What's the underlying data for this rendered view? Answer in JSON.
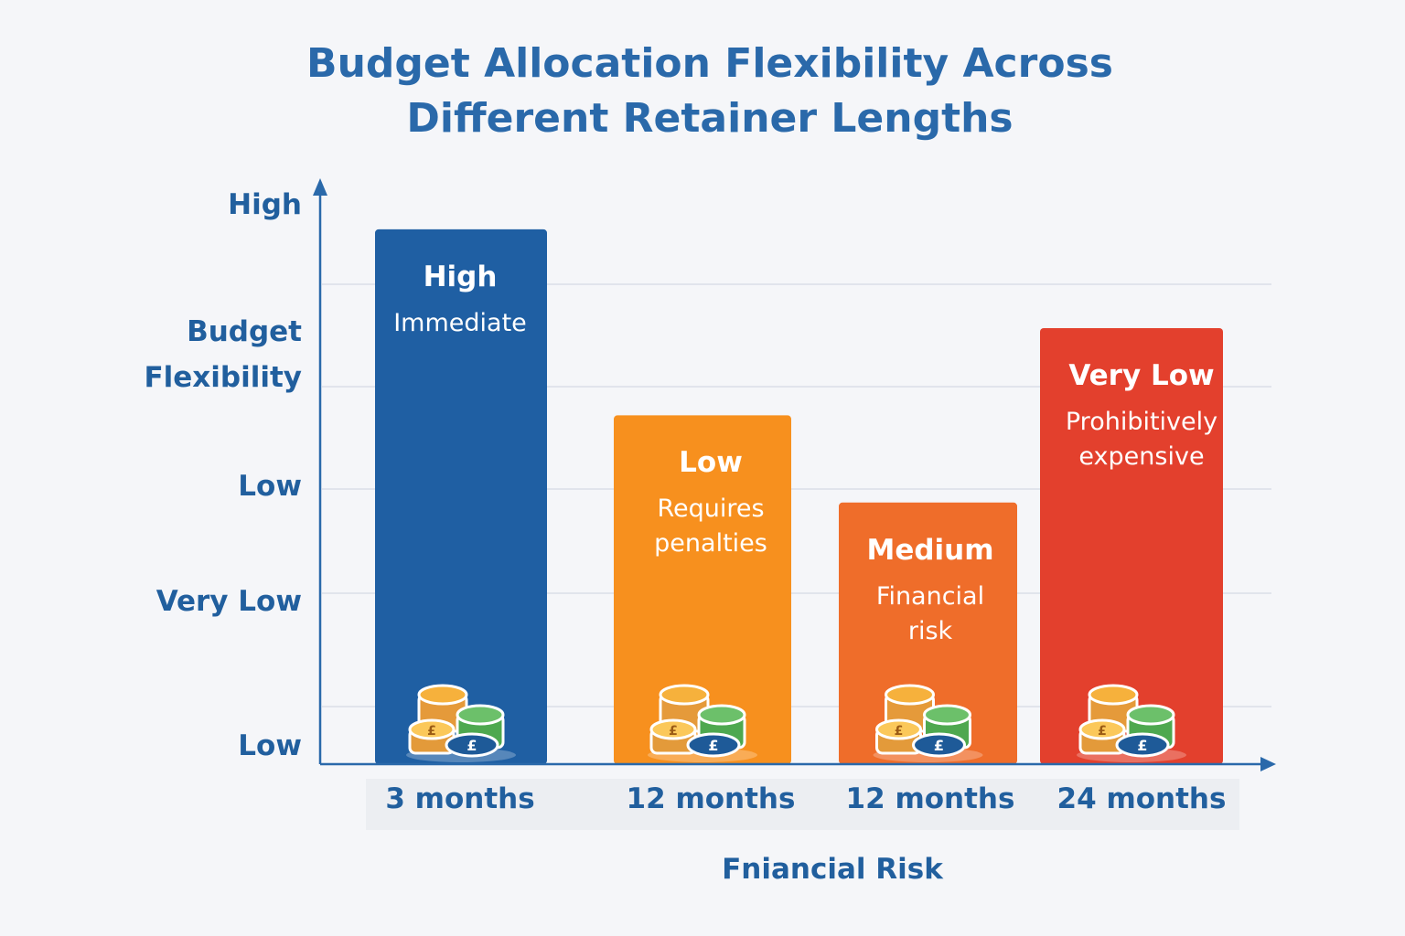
{
  "chart_data": {
    "type": "bar",
    "title": "Budget Allocation Flexibility Across Different Retainer Lengths",
    "title_lines": [
      "Budget Allocation Flexibility Across",
      "Different Retainer Lengths"
    ],
    "ylabel_lines": [
      "Budget",
      "Flexibility"
    ],
    "xlabel": "Fniancial Risk",
    "y_tick_labels": [
      "Low",
      "Very Low",
      "Low",
      "High"
    ],
    "ylim": [
      0,
      100
    ],
    "grid": true,
    "categories": [
      "3 months",
      "12 months",
      "12 months",
      "24 months"
    ],
    "values": [
      92,
      60,
      45,
      75
    ],
    "bar_levels": [
      "High",
      "Low",
      "Medium",
      "Very Low"
    ],
    "bar_descriptions": [
      [
        "Immediate"
      ],
      [
        "Requires",
        "penalties"
      ],
      [
        "Financial",
        "risk"
      ],
      [
        "Prohibitively",
        "expensive"
      ]
    ],
    "bar_colors": [
      "#1f5fa3",
      "#f7901e",
      "#ef6d2a",
      "#e3402d"
    ],
    "bar_icon": "coin-stack-pound-icon",
    "axis_color": "#2a69aa"
  }
}
